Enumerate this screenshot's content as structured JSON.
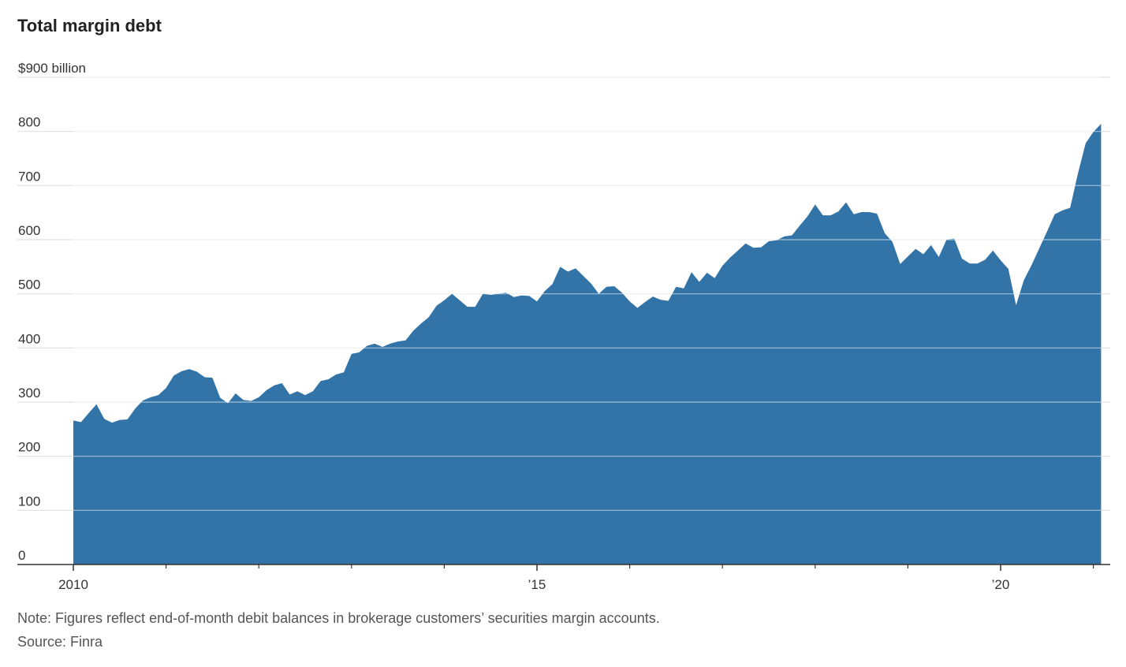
{
  "title": "Total margin debt",
  "note": "Note: Figures reflect end-of-month debit balances in brokerage customers’ securities margin accounts.",
  "source": "Source: Finra",
  "colors": {
    "area": "#3274a8",
    "grid": "#e0e0e0",
    "axis": "#333333"
  },
  "chart_data": {
    "type": "area",
    "title": "Total margin debt",
    "xlabel": "",
    "ylabel": "",
    "unit_label": "$900 billion",
    "ylim": [
      0,
      900
    ],
    "y_ticks": [
      0,
      100,
      200,
      300,
      400,
      500,
      600,
      700,
      800,
      900
    ],
    "y_tick_labels": [
      "0",
      "100",
      "200",
      "300",
      "400",
      "500",
      "600",
      "700",
      "800",
      "$900 billion"
    ],
    "x_ticks": [
      {
        "date": "2010-01",
        "label": "2010"
      },
      {
        "date": "2015-01",
        "label": "’15"
      },
      {
        "date": "2020-01",
        "label": "’20"
      }
    ],
    "minor_x_ticks": [
      "2011-01",
      "2012-01",
      "2013-01",
      "2014-01",
      "2016-01",
      "2017-01",
      "2018-01",
      "2019-01",
      "2021-01"
    ],
    "grid": true,
    "series": [
      {
        "name": "",
        "x": [
          "2010-01",
          "2010-02",
          "2010-03",
          "2010-04",
          "2010-05",
          "2010-06",
          "2010-07",
          "2010-08",
          "2010-09",
          "2010-10",
          "2010-11",
          "2010-12",
          "2011-01",
          "2011-02",
          "2011-03",
          "2011-04",
          "2011-05",
          "2011-06",
          "2011-07",
          "2011-08",
          "2011-09",
          "2011-10",
          "2011-11",
          "2011-12",
          "2012-01",
          "2012-02",
          "2012-03",
          "2012-04",
          "2012-05",
          "2012-06",
          "2012-07",
          "2012-08",
          "2012-09",
          "2012-10",
          "2012-11",
          "2012-12",
          "2013-01",
          "2013-02",
          "2013-03",
          "2013-04",
          "2013-05",
          "2013-06",
          "2013-07",
          "2013-08",
          "2013-09",
          "2013-10",
          "2013-11",
          "2013-12",
          "2014-01",
          "2014-02",
          "2014-03",
          "2014-04",
          "2014-05",
          "2014-06",
          "2014-07",
          "2014-08",
          "2014-09",
          "2014-10",
          "2014-11",
          "2014-12",
          "2015-01",
          "2015-02",
          "2015-03",
          "2015-04",
          "2015-05",
          "2015-06",
          "2015-07",
          "2015-08",
          "2015-09",
          "2015-10",
          "2015-11",
          "2015-12",
          "2016-01",
          "2016-02",
          "2016-03",
          "2016-04",
          "2016-05",
          "2016-06",
          "2016-07",
          "2016-08",
          "2016-09",
          "2016-10",
          "2016-11",
          "2016-12",
          "2017-01",
          "2017-02",
          "2017-03",
          "2017-04",
          "2017-05",
          "2017-06",
          "2017-07",
          "2017-08",
          "2017-09",
          "2017-10",
          "2017-11",
          "2017-12",
          "2018-01",
          "2018-02",
          "2018-03",
          "2018-04",
          "2018-05",
          "2018-06",
          "2018-07",
          "2018-08",
          "2018-09",
          "2018-10",
          "2018-11",
          "2018-12",
          "2019-01",
          "2019-02",
          "2019-03",
          "2019-04",
          "2019-05",
          "2019-06",
          "2019-07",
          "2019-08",
          "2019-09",
          "2019-10",
          "2019-11",
          "2019-12",
          "2020-01",
          "2020-02",
          "2020-03",
          "2020-04",
          "2020-05",
          "2020-06",
          "2020-07",
          "2020-08",
          "2020-09",
          "2020-10",
          "2020-11",
          "2020-12",
          "2021-01",
          "2021-02"
        ],
        "values": [
          266,
          263,
          280,
          296,
          269,
          262,
          267,
          268,
          288,
          303,
          309,
          313,
          326,
          349,
          357,
          361,
          356,
          346,
          345,
          308,
          298,
          316,
          304,
          302,
          309,
          322,
          331,
          335,
          314,
          320,
          313,
          320,
          339,
          342,
          351,
          355,
          389,
          392,
          404,
          408,
          402,
          408,
          412,
          414,
          432,
          445,
          457,
          478,
          488,
          500,
          488,
          476,
          476,
          500,
          498,
          500,
          502,
          494,
          497,
          496,
          486,
          505,
          518,
          550,
          541,
          547,
          533,
          519,
          500,
          513,
          514,
          502,
          486,
          474,
          485,
          495,
          489,
          487,
          513,
          510,
          540,
          522,
          539,
          529,
          552,
          567,
          580,
          593,
          585,
          586,
          597,
          599,
          606,
          608,
          626,
          643,
          665,
          645,
          645,
          652,
          669,
          647,
          651,
          651,
          648,
          612,
          596,
          555,
          569,
          583,
          573,
          590,
          568,
          600,
          602,
          565,
          556,
          556,
          563,
          580,
          562,
          546,
          479,
          525,
          553,
          584,
          615,
          647,
          654,
          659,
          722,
          778,
          799,
          814
        ]
      }
    ]
  }
}
